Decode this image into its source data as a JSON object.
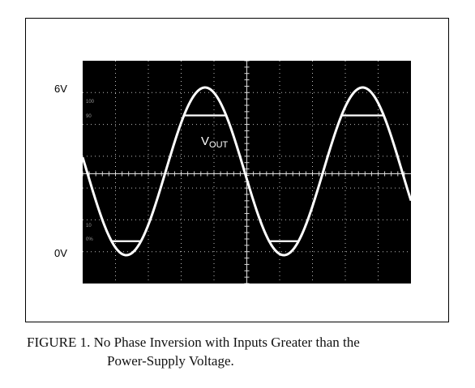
{
  "figure": {
    "caption_line1": "FIGURE 1. No Phase Inversion with Inputs Greater than the",
    "caption_line2": "Power-Supply Voltage."
  },
  "chart_data": {
    "type": "line",
    "title": "",
    "xlabel": "",
    "ylabel": "",
    "ylim": [
      0,
      6
    ],
    "yticks": [
      "0V",
      "6V"
    ],
    "grid": true,
    "background": "#000000",
    "trace_color": "#ffffff",
    "annotations": [
      {
        "label": "V",
        "subscript": "OUT"
      }
    ],
    "series": [
      {
        "role": "input",
        "period_divisions": 4.8,
        "amplitude_min_v": 0,
        "amplitude_max_v": 6,
        "phase_start_v": 3.5
      },
      {
        "role": "output",
        "clip_high_v": 5,
        "clip_low_v": 0.5
      }
    ],
    "scope_grid": {
      "x_divisions": 10,
      "y_divisions": 7
    }
  }
}
